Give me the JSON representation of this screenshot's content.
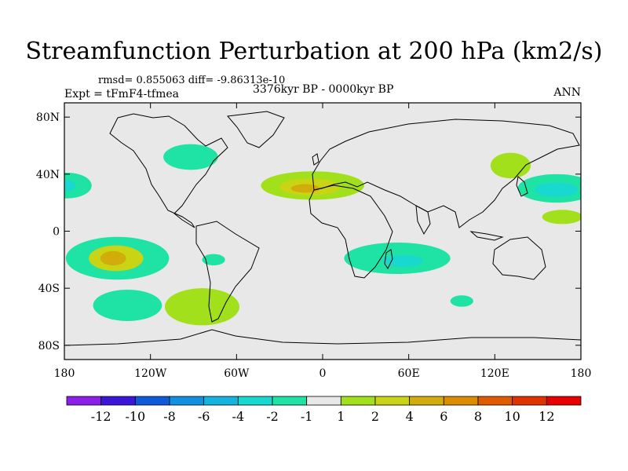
{
  "title": "Streamfunction Perturbation at 200 hPa (km2/s)",
  "stats": "rmsd= 0.855063 diff= -9.86313e-10",
  "experiment": "Expt = tFmF4-tfmea",
  "period": "3376kyr BP - 0000kyr BP",
  "season": "ANN",
  "map": {
    "lon_range": [
      -180,
      180
    ],
    "lat_range": [
      -90,
      90
    ],
    "background_color": "#e8e8e8",
    "lat_ticks": [
      {
        "value": 80,
        "label": "80N"
      },
      {
        "value": 40,
        "label": "40N"
      },
      {
        "value": 0,
        "label": "0"
      },
      {
        "value": -40,
        "label": "40S"
      },
      {
        "value": -80,
        "label": "80S"
      }
    ],
    "lon_ticks": [
      {
        "value": -180,
        "label": "180"
      },
      {
        "value": -120,
        "label": "120W"
      },
      {
        "value": -60,
        "label": "60W"
      },
      {
        "value": 0,
        "label": "0"
      },
      {
        "value": 60,
        "label": "60E"
      },
      {
        "value": 120,
        "label": "120E"
      },
      {
        "value": 180,
        "label": "180"
      }
    ]
  },
  "colorbar": {
    "colors": [
      "#8c1eea",
      "#3b16d8",
      "#0f5ad8",
      "#1090e0",
      "#14b4de",
      "#18d8d0",
      "#1ee3a4",
      "#e8e8e8",
      "#a2e01c",
      "#c8d414",
      "#d2ac0a",
      "#dc8c00",
      "#e05a00",
      "#e03400",
      "#e80000"
    ],
    "labels": [
      "-12",
      "-10",
      "-8",
      "-6",
      "-4",
      "-2",
      "-1",
      "1",
      "2",
      "4",
      "6",
      "8",
      "10",
      "12"
    ]
  },
  "anomalies": [
    {
      "name": "north-atlantic-negative",
      "color": "#1ee3a4",
      "lon": -92,
      "lat": 52,
      "rlon": 19,
      "rlat": 9
    },
    {
      "name": "pacific-east-negative-outer",
      "color": "#1ee3a4",
      "lon": -178,
      "lat": 32,
      "rlon": 17,
      "rlat": 9
    },
    {
      "name": "pacific-east-negative-inner",
      "color": "#18d8d0",
      "lon": -180,
      "lat": 32,
      "rlon": 8,
      "rlat": 4
    },
    {
      "name": "south-pacific-negative-outer",
      "color": "#1ee3a4",
      "lon": -143,
      "lat": -19,
      "rlon": 36,
      "rlat": 15
    },
    {
      "name": "south-pacific-negative-inner",
      "color": "#c8d414",
      "lon": -144,
      "lat": -19,
      "rlon": 19,
      "rlat": 9
    },
    {
      "name": "south-pacific-negative-core",
      "color": "#d2ac0a",
      "lon": -146,
      "lat": -19,
      "rlon": 9,
      "rlat": 5
    },
    {
      "name": "south-america-small",
      "color": "#1ee3a4",
      "lon": -76,
      "lat": -20,
      "rlon": 8,
      "rlat": 4
    },
    {
      "name": "south-pacific-lower",
      "color": "#1ee3a4",
      "lon": -136,
      "lat": -52,
      "rlon": 24,
      "rlat": 11
    },
    {
      "name": "patagonia-positive",
      "color": "#a2e01c",
      "lon": -84,
      "lat": -53,
      "rlon": 26,
      "rlat": 13
    },
    {
      "name": "mediterranean-positive-outer",
      "color": "#a2e01c",
      "lon": -7,
      "lat": 32,
      "rlon": 36,
      "rlat": 10
    },
    {
      "name": "mediterranean-positive-inner",
      "color": "#c8d414",
      "lon": -9,
      "lat": 31,
      "rlon": 21,
      "rlat": 6
    },
    {
      "name": "mediterranean-positive-core",
      "color": "#d2ac0a",
      "lon": -12,
      "lat": 30,
      "rlon": 10,
      "rlat": 3
    },
    {
      "name": "indian-ocean-negative-outer",
      "color": "#1ee3a4",
      "lon": 52,
      "lat": -19,
      "rlon": 37,
      "rlat": 11
    },
    {
      "name": "indian-ocean-negative-inner",
      "color": "#18d8d0",
      "lon": 56,
      "lat": -21,
      "rlon": 14,
      "rlat": 4
    },
    {
      "name": "southern-ocean-small",
      "color": "#1ee3a4",
      "lon": 97,
      "lat": -49,
      "rlon": 8,
      "rlat": 4
    },
    {
      "name": "northeast-asia-positive",
      "color": "#a2e01c",
      "lon": 131,
      "lat": 46,
      "rlon": 14,
      "rlat": 9
    },
    {
      "name": "north-pacific-negative-outer",
      "color": "#1ee3a4",
      "lon": 163,
      "lat": 30,
      "rlon": 27,
      "rlat": 10
    },
    {
      "name": "north-pacific-negative-inner",
      "color": "#18d8d0",
      "lon": 163,
      "lat": 29,
      "rlon": 15,
      "rlat": 5
    },
    {
      "name": "west-pacific-positive",
      "color": "#a2e01c",
      "lon": 167,
      "lat": 10,
      "rlon": 14,
      "rlat": 5
    }
  ]
}
